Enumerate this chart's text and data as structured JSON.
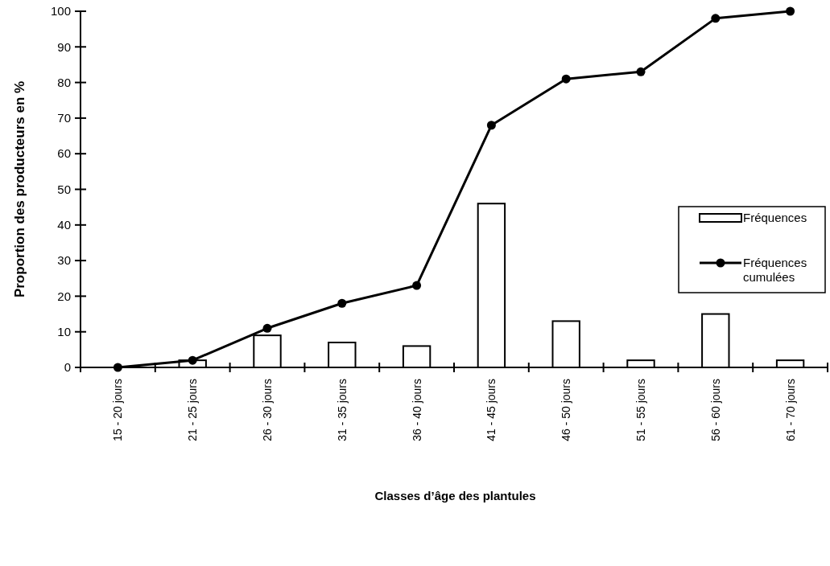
{
  "chart_data": {
    "type": "bar",
    "xlabel": "Classes d’âge des plantules",
    "ylabel": "Proportion des producteurs en %",
    "categories": [
      "15 - 20 jours",
      "21 - 25 jours",
      "26 - 30 jours",
      "31 - 35 jours",
      "36 - 40 jours",
      "41 - 45 jours",
      "46 - 50 jours",
      "51 - 55 jours",
      "56 - 60 jours",
      "61 - 70 jours"
    ],
    "series": [
      {
        "name": "Fréquences",
        "color": "#ffffff",
        "values": [
          0,
          2,
          9,
          7,
          6,
          46,
          13,
          2,
          15,
          2
        ]
      },
      {
        "name": "Fréquences cumulées",
        "type": "line",
        "color": "#000000",
        "values": [
          0,
          2,
          11,
          18,
          23,
          68,
          81,
          83,
          98,
          100
        ]
      }
    ],
    "ylim": [
      0,
      100
    ],
    "yticks": [
      0,
      10,
      20,
      30,
      40,
      50,
      60,
      70,
      80,
      90,
      100
    ],
    "grid": false,
    "legend": "right",
    "marker": "circle"
  }
}
